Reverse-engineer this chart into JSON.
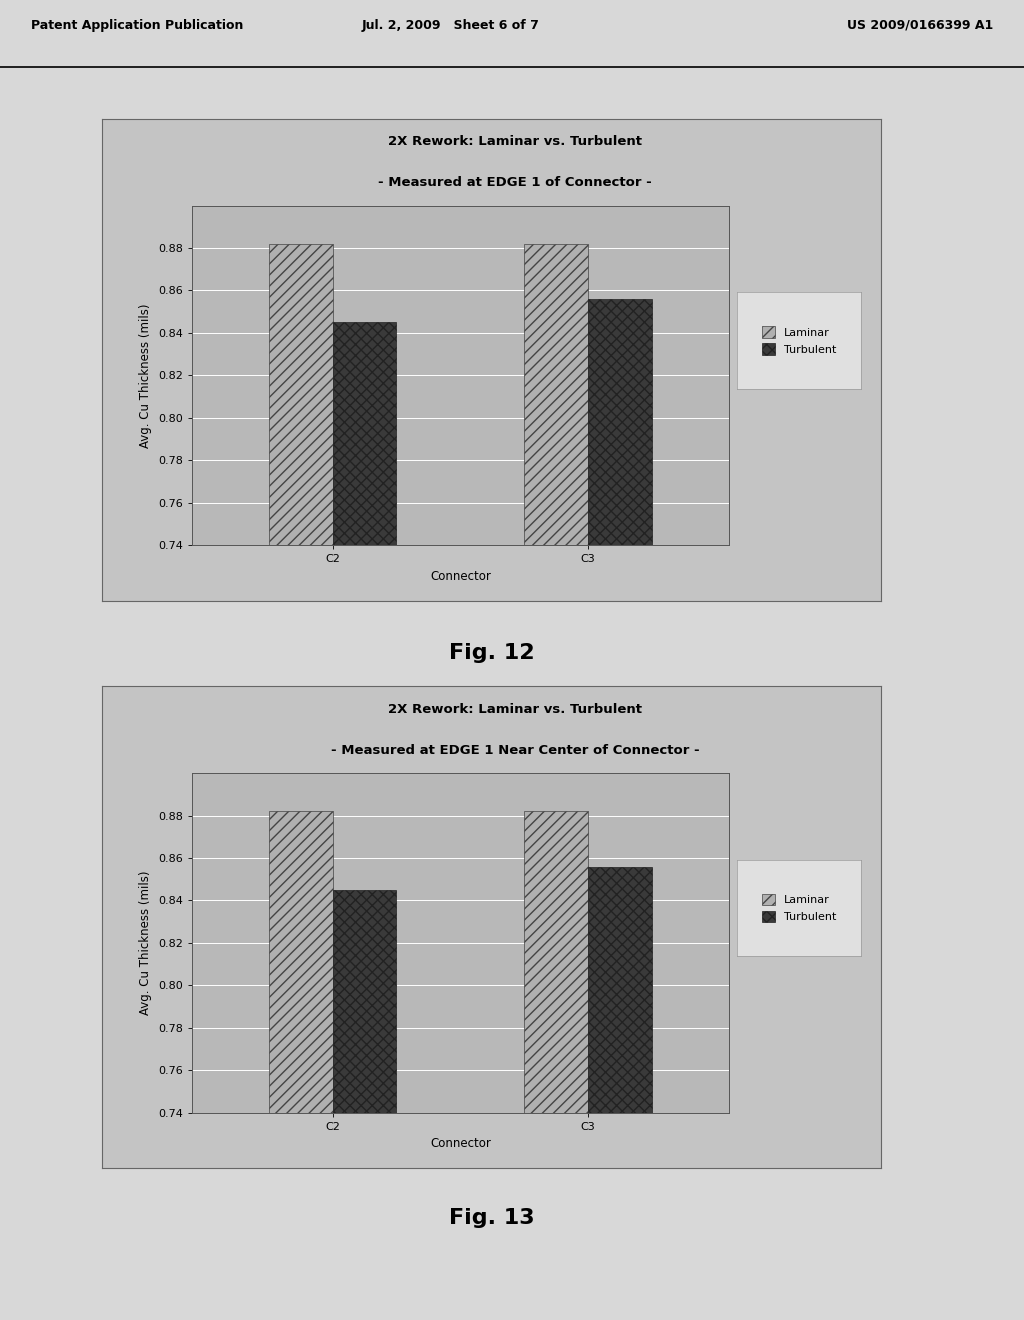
{
  "header_left": "Patent Application Publication",
  "header_mid": "Jul. 2, 2009   Sheet 6 of 7",
  "header_right": "US 2009/0166399 A1",
  "fig12": {
    "title_line1": "2X Rework: Laminar vs. Turbulent",
    "title_line2": "- Measured at EDGE 1 of Connector -",
    "categories": [
      "C2",
      "C3"
    ],
    "laminar_values": [
      0.882,
      0.882
    ],
    "turbulent_values": [
      0.845,
      0.856
    ],
    "xlabel": "Connector",
    "ylabel": "Avg. Cu Thickness (mils)",
    "ylim": [
      0.74,
      0.9
    ],
    "yticks": [
      0.74,
      0.76,
      0.78,
      0.8,
      0.82,
      0.84,
      0.86,
      0.88
    ],
    "figname": "Fig. 12"
  },
  "fig13": {
    "title_line1": "2X Rework: Laminar vs. Turbulent",
    "title_line2": "- Measured at EDGE 1 Near Center of Connector -",
    "categories": [
      "C2",
      "C3"
    ],
    "laminar_values": [
      0.882,
      0.882
    ],
    "turbulent_values": [
      0.845,
      0.856
    ],
    "xlabel": "Connector",
    "ylabel": "Avg. Cu Thickness (mils)",
    "ylim": [
      0.74,
      0.9
    ],
    "yticks": [
      0.74,
      0.76,
      0.78,
      0.8,
      0.82,
      0.84,
      0.86,
      0.88
    ],
    "figname": "Fig. 13"
  },
  "laminar_color": "#b0b0b0",
  "turbulent_color": "#3a3a3a",
  "laminar_hatch": "///",
  "turbulent_hatch": "xxx",
  "page_bg": "#d8d8d8",
  "chart_outer_bg": "#c4c4c4",
  "plot_bg": "#b8b8b8",
  "legend_bg": "#e0e0e0",
  "legend_labels": [
    "Laminar",
    "Turbulent"
  ],
  "bar_width": 0.25,
  "title_fontsize": 9.5,
  "axis_label_fontsize": 8.5,
  "tick_fontsize": 8,
  "legend_fontsize": 8,
  "figname_fontsize": 16
}
